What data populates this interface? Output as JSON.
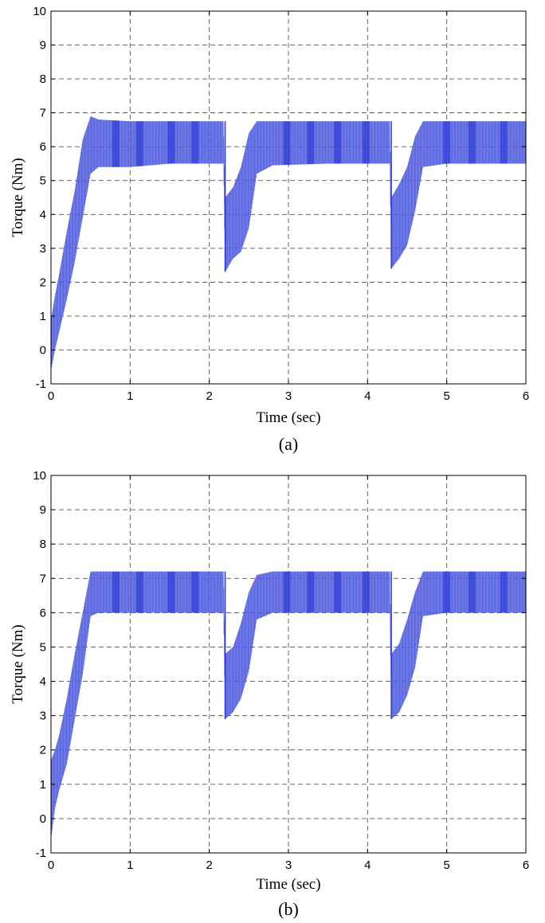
{
  "figure": {
    "panels": [
      {
        "caption": "(a)"
      },
      {
        "caption": "(b)"
      }
    ]
  },
  "chart_data": [
    {
      "type": "line",
      "panel": "(a)",
      "xlabel": "Time (sec)",
      "ylabel": "Torque (Nm)",
      "xlim": [
        0,
        6
      ],
      "ylim": [
        -1,
        10
      ],
      "xticks": [
        0,
        1,
        2,
        3,
        4,
        5,
        6
      ],
      "yticks": [
        -1,
        0,
        1,
        2,
        3,
        4,
        5,
        6,
        7,
        8,
        9,
        10
      ],
      "grid": true,
      "series_color": "#1f2fd6",
      "band_fill": "#8f97e8",
      "series": [
        {
          "x": [
            0,
            0.05,
            0.1,
            0.2,
            0.3,
            0.4,
            0.5,
            0.6,
            1.0,
            1.5,
            2.0,
            2.18,
            2.2,
            2.3,
            2.4,
            2.5,
            2.6,
            2.8,
            3.5,
            4.0,
            4.28,
            4.3,
            4.4,
            4.5,
            4.6,
            4.7,
            5.0,
            5.5,
            6.0
          ],
          "ymin": [
            -0.6,
            0.0,
            0.5,
            1.5,
            2.6,
            3.9,
            5.2,
            5.4,
            5.4,
            5.5,
            5.5,
            5.5,
            2.3,
            2.7,
            2.9,
            3.6,
            5.2,
            5.45,
            5.5,
            5.5,
            5.5,
            2.4,
            2.7,
            3.1,
            4.1,
            5.4,
            5.5,
            5.5,
            5.5
          ],
          "ymax": [
            0.9,
            1.6,
            2.2,
            3.5,
            4.7,
            6.2,
            6.9,
            6.8,
            6.75,
            6.75,
            6.75,
            6.75,
            4.5,
            4.8,
            5.4,
            6.4,
            6.75,
            6.75,
            6.75,
            6.75,
            6.75,
            4.5,
            4.9,
            5.4,
            6.3,
            6.75,
            6.75,
            6.75,
            6.75
          ]
        }
      ]
    },
    {
      "type": "line",
      "panel": "(b)",
      "xlabel": "Time (sec)",
      "ylabel": "Torque (Nm)",
      "xlim": [
        0,
        6
      ],
      "ylim": [
        -1,
        10
      ],
      "xticks": [
        0,
        1,
        2,
        3,
        4,
        5,
        6
      ],
      "yticks": [
        -1,
        0,
        1,
        2,
        3,
        4,
        5,
        6,
        7,
        8,
        9,
        10
      ],
      "grid": true,
      "series_color": "#1f2fd6",
      "band_fill": "#8f97e8",
      "series": [
        {
          "x": [
            0,
            0.05,
            0.1,
            0.2,
            0.3,
            0.4,
            0.5,
            0.6,
            1.0,
            1.5,
            2.0,
            2.18,
            2.2,
            2.3,
            2.4,
            2.5,
            2.6,
            2.8,
            3.5,
            4.0,
            4.28,
            4.3,
            4.4,
            4.5,
            4.6,
            4.7,
            5.0,
            5.5,
            6.0
          ],
          "ymin": [
            -0.6,
            0.3,
            0.8,
            1.6,
            2.9,
            4.2,
            5.9,
            6.0,
            6.0,
            6.0,
            6.0,
            6.0,
            2.9,
            3.1,
            3.5,
            4.3,
            5.8,
            6.0,
            6.0,
            6.0,
            6.0,
            2.9,
            3.1,
            3.6,
            4.4,
            5.9,
            6.0,
            6.0,
            6.0
          ],
          "ymax": [
            1.7,
            2.0,
            2.4,
            3.5,
            4.8,
            6.0,
            7.2,
            7.2,
            7.2,
            7.2,
            7.2,
            7.2,
            4.8,
            5.0,
            5.7,
            6.6,
            7.1,
            7.2,
            7.2,
            7.2,
            7.2,
            4.8,
            5.1,
            5.8,
            6.6,
            7.2,
            7.2,
            7.2,
            7.2
          ]
        }
      ]
    }
  ]
}
